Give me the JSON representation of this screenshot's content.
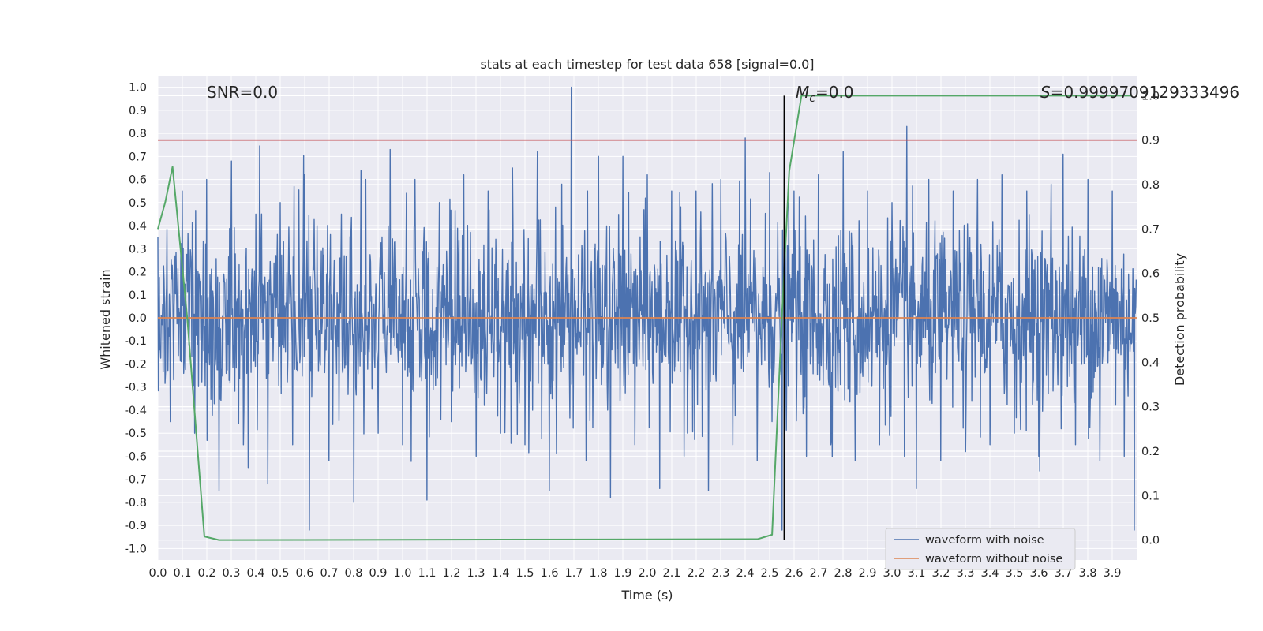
{
  "chart_data": {
    "type": "line",
    "title": "stats at each timestep for test data 658 [signal=0.0]",
    "xlabel": "Time (s)",
    "ylabel": "Whitened strain",
    "y2label": "Detection probability",
    "xlim": [
      0.0,
      4.0
    ],
    "ylim": [
      -1.05,
      1.05
    ],
    "y2lim": [
      -0.045,
      1.045
    ],
    "x_ticks": [
      "0.0",
      "0.1",
      "0.2",
      "0.3",
      "0.4",
      "0.5",
      "0.6",
      "0.7",
      "0.8",
      "0.9",
      "1.0",
      "1.1",
      "1.2",
      "1.3",
      "1.4",
      "1.5",
      "1.6",
      "1.7",
      "1.8",
      "1.9",
      "2.0",
      "2.1",
      "2.2",
      "2.3",
      "2.4",
      "2.5",
      "2.6",
      "2.7",
      "2.8",
      "2.9",
      "3.0",
      "3.1",
      "3.2",
      "3.3",
      "3.4",
      "3.5",
      "3.6",
      "3.7",
      "3.8",
      "3.9"
    ],
    "y_ticks": [
      "1.0",
      "0.9",
      "0.8",
      "0.7",
      "0.6",
      "0.5",
      "0.4",
      "0.3",
      "0.2",
      "0.1",
      "0.0",
      "-0.1",
      "-0.2",
      "-0.3",
      "-0.4",
      "-0.5",
      "-0.6",
      "-0.7",
      "-0.8",
      "-0.9",
      "-1.0"
    ],
    "y2_ticks": [
      "1.0",
      "0.9",
      "0.8",
      "0.7",
      "0.6",
      "0.5",
      "0.4",
      "0.3",
      "0.2",
      "0.1",
      "0.0"
    ],
    "grid": true,
    "legend_position": "lower-right",
    "series": [
      {
        "name": "waveform with noise",
        "color": "#4c72b0",
        "axis": "left",
        "note_sampling": "noisy whitened strain, approx. 2048 samples over 0-4 s",
        "x": [
          0.0,
          0.05,
          0.1,
          0.15,
          0.2,
          0.25,
          0.3,
          0.35,
          0.4,
          0.45,
          0.5,
          0.55,
          0.6,
          0.62,
          0.65,
          0.7,
          0.75,
          0.8,
          0.85,
          0.9,
          0.95,
          1.0,
          1.05,
          1.1,
          1.15,
          1.2,
          1.25,
          1.3,
          1.35,
          1.4,
          1.45,
          1.5,
          1.55,
          1.6,
          1.65,
          1.69,
          1.75,
          1.8,
          1.85,
          1.9,
          1.95,
          2.0,
          2.05,
          2.1,
          2.15,
          2.2,
          2.25,
          2.3,
          2.35,
          2.4,
          2.45,
          2.5,
          2.55,
          2.6,
          2.65,
          2.7,
          2.75,
          2.8,
          2.85,
          2.9,
          2.95,
          3.0,
          3.05,
          3.06,
          3.1,
          3.15,
          3.2,
          3.25,
          3.3,
          3.35,
          3.4,
          3.45,
          3.5,
          3.55,
          3.6,
          3.65,
          3.7,
          3.75,
          3.8,
          3.85,
          3.9,
          3.95,
          3.99
        ],
        "y": [
          0.35,
          -0.45,
          0.55,
          -0.5,
          0.6,
          -0.75,
          0.68,
          -0.55,
          0.45,
          -0.72,
          0.5,
          -0.55,
          0.62,
          -0.92,
          0.4,
          -0.62,
          0.45,
          -0.8,
          0.6,
          -0.5,
          0.73,
          -0.55,
          0.6,
          -0.79,
          0.5,
          -0.45,
          0.62,
          -0.6,
          0.55,
          -0.5,
          0.65,
          -0.55,
          0.72,
          -0.75,
          0.58,
          1.0,
          -0.62,
          0.7,
          -0.78,
          0.7,
          -0.55,
          0.62,
          -0.74,
          0.55,
          -0.6,
          0.55,
          -0.75,
          0.6,
          -0.55,
          0.78,
          -0.62,
          0.63,
          -0.92,
          0.55,
          -0.6,
          0.62,
          -0.55,
          0.72,
          -0.62,
          0.55,
          -0.55,
          0.5,
          -0.6,
          0.83,
          -0.74,
          0.6,
          -0.62,
          0.55,
          -0.58,
          0.6,
          -0.55,
          0.62,
          -0.5,
          0.55,
          -0.6,
          0.58,
          0.71,
          -0.55,
          0.6,
          -0.62,
          0.55,
          -0.6,
          -0.92
        ]
      },
      {
        "name": "waveform without noise",
        "color": "#dd8452",
        "axis": "left",
        "x": [
          0.0,
          4.0
        ],
        "y": [
          0.0,
          0.0
        ]
      },
      {
        "color": "#55a868",
        "axis": "right",
        "x": [
          0.0,
          0.03,
          0.06,
          0.12,
          0.19,
          0.25,
          2.45,
          2.51,
          2.55,
          2.58,
          2.63,
          3.98
        ],
        "y": [
          0.7,
          0.76,
          0.84,
          0.5,
          0.008,
          0.0,
          0.002,
          0.012,
          0.5,
          0.83,
          1.0,
          1.0
        ]
      }
    ],
    "threshold_line": {
      "y2": 0.9,
      "color": "#c44e52"
    },
    "marker_vline": {
      "x": 2.56,
      "y2_range": [
        0.0,
        1.0
      ],
      "color": "#000000"
    },
    "annotations": {
      "snr": "SNR=0.0",
      "mc_symbol": "M",
      "mc_subscript": "c",
      "mc_value": "=0.0",
      "s_symbol": "S",
      "s_value": "=0.9999709129333496"
    },
    "legend": [
      "waveform with noise",
      "waveform without noise"
    ]
  }
}
